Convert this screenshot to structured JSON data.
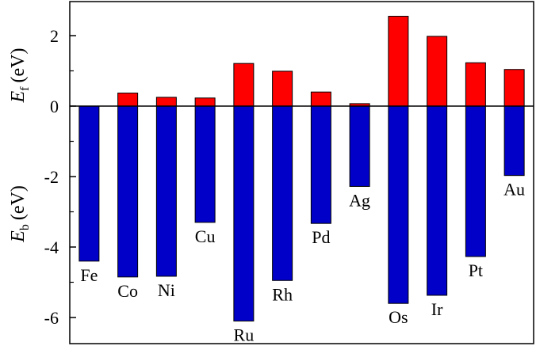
{
  "chart_data": {
    "type": "bar",
    "categories": [
      "Fe",
      "Co",
      "Ni",
      "Cu",
      "Ru",
      "Rh",
      "Pd",
      "Ag",
      "Os",
      "Ir",
      "Pt",
      "Au"
    ],
    "series": [
      {
        "name": "Ef",
        "color": "#ff0000",
        "values": [
          0,
          0.37,
          0.25,
          0.23,
          1.21,
          0.99,
          0.4,
          0.07,
          2.55,
          1.98,
          1.23,
          1.04
        ]
      },
      {
        "name": "Eb",
        "color": "#0000c8",
        "values": [
          -4.4,
          -4.85,
          -4.83,
          -3.3,
          -6.1,
          -4.95,
          -3.33,
          -2.28,
          -5.6,
          -5.37,
          -4.27,
          -1.97
        ]
      }
    ],
    "yticks": [
      "2",
      "0",
      "-2",
      "-4",
      "-6"
    ],
    "ylim": [
      -6.8,
      3.0
    ],
    "ylabel_top": {
      "main": "E",
      "sub": "f",
      "unit": "(eV)"
    },
    "ylabel_bottom": {
      "main": "E",
      "sub": "b",
      "unit": "(eV)"
    },
    "grid": false,
    "legend": "none"
  }
}
